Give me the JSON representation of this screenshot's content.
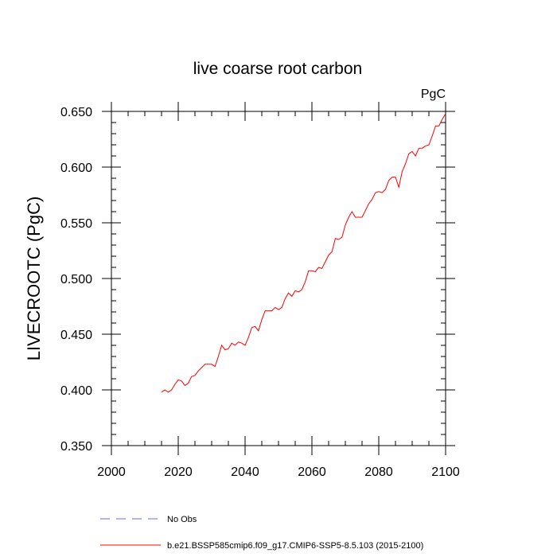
{
  "chart_data": {
    "type": "line",
    "title": "live coarse root carbon",
    "units_label": "PgC",
    "ylabel": "LIVECROOTC  (PgC)",
    "xlabel": "",
    "xlim": [
      2000,
      2100
    ],
    "ylim": [
      0.35,
      0.65
    ],
    "x_ticks": [
      2000,
      2020,
      2040,
      2060,
      2080,
      2100
    ],
    "x_tick_labels": [
      "2000",
      "2020",
      "2040",
      "2060",
      "2080",
      "2100"
    ],
    "y_ticks": [
      0.35,
      0.4,
      0.45,
      0.5,
      0.55,
      0.6,
      0.65
    ],
    "y_tick_labels": [
      "0.350",
      "0.400",
      "0.450",
      "0.500",
      "0.550",
      "0.600",
      "0.650"
    ],
    "grid": false,
    "series": [
      {
        "name": "b.e21.BSSP585cmip6.f09_g17.CMIP6-SSP5-8.5.103 (2015-2100)",
        "color": "#ff0000",
        "x": [
          2015,
          2016,
          2017,
          2018,
          2019,
          2020,
          2021,
          2022,
          2023,
          2024,
          2025,
          2026,
          2027,
          2028,
          2029,
          2030,
          2031,
          2032,
          2033,
          2034,
          2035,
          2036,
          2037,
          2038,
          2039,
          2040,
          2041,
          2042,
          2043,
          2044,
          2045,
          2046,
          2047,
          2048,
          2049,
          2050,
          2051,
          2052,
          2053,
          2054,
          2055,
          2056,
          2057,
          2058,
          2059,
          2060,
          2061,
          2062,
          2063,
          2064,
          2065,
          2066,
          2067,
          2068,
          2069,
          2070,
          2071,
          2072,
          2073,
          2074,
          2075,
          2076,
          2077,
          2078,
          2079,
          2080,
          2081,
          2082,
          2083,
          2084,
          2085,
          2086,
          2087,
          2088,
          2089,
          2090,
          2091,
          2092,
          2093,
          2094,
          2095,
          2096,
          2097,
          2098,
          2099,
          2100
        ],
        "values": [
          0.398,
          0.4,
          0.398,
          0.4,
          0.405,
          0.409,
          0.408,
          0.404,
          0.406,
          0.412,
          0.413,
          0.417,
          0.42,
          0.423,
          0.423,
          0.423,
          0.421,
          0.43,
          0.44,
          0.436,
          0.437,
          0.442,
          0.44,
          0.443,
          0.442,
          0.44,
          0.447,
          0.456,
          0.457,
          0.453,
          0.463,
          0.471,
          0.471,
          0.471,
          0.474,
          0.472,
          0.474,
          0.482,
          0.487,
          0.484,
          0.489,
          0.488,
          0.49,
          0.497,
          0.507,
          0.507,
          0.506,
          0.51,
          0.509,
          0.515,
          0.521,
          0.524,
          0.536,
          0.535,
          0.537,
          0.548,
          0.555,
          0.56,
          0.555,
          0.555,
          0.555,
          0.561,
          0.567,
          0.571,
          0.577,
          0.578,
          0.577,
          0.58,
          0.588,
          0.591,
          0.591,
          0.582,
          0.596,
          0.603,
          0.612,
          0.614,
          0.61,
          0.617,
          0.617,
          0.619,
          0.62,
          0.628,
          0.637,
          0.637,
          0.643,
          0.648
        ]
      }
    ],
    "legend": {
      "position": "bottom-left",
      "entries": [
        {
          "label": "No Obs",
          "color": "#6666ff",
          "style": "dashed"
        },
        {
          "label": "b.e21.BSSP585cmip6.f09_g17.CMIP6-SSP5-8.5.103 (2015-2100)",
          "color": "#ff0000",
          "style": "solid"
        }
      ]
    }
  }
}
